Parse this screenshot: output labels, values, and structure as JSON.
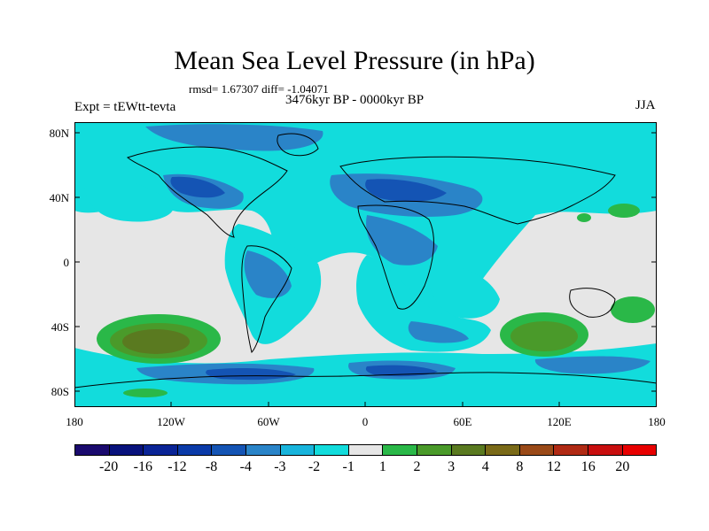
{
  "title": "Mean Sea Level Pressure (in hPa)",
  "stats": "rmsd= 1.67307 diff= -1.04071",
  "period": "3476kyr BP - 0000kyr BP",
  "experiment": "Expt = tEWtt-tevta",
  "season": "JJA",
  "lat_labels": [
    "80N",
    "40N",
    "0",
    "40S",
    "80S"
  ],
  "lon_labels": [
    "180",
    "120W",
    "60W",
    "0",
    "60E",
    "120E",
    "180"
  ],
  "colorbar": {
    "colors": [
      "#1a0a6e",
      "#08127c",
      "#0a2496",
      "#0a3aa8",
      "#1454b4",
      "#2a84c8",
      "#18b4dc",
      "#12dcdc",
      "#e6e6e6",
      "#2ab848",
      "#4a9a2a",
      "#5a7a20",
      "#7a6a18",
      "#9a4a18",
      "#b02a14",
      "#c80e0e",
      "#e80000"
    ],
    "labels": [
      "-20",
      "-16",
      "-12",
      "-8",
      "-4",
      "-3",
      "-2",
      "-1",
      "1",
      "2",
      "3",
      "4",
      "8",
      "12",
      "16",
      "20"
    ]
  },
  "palette": {
    "neutral": "#e6e6e6",
    "cyan": "#12dcdc",
    "lightblue": "#18b4dc",
    "blue": "#2a84c8",
    "darkblue": "#1454b4",
    "green": "#2ab848",
    "darkgreen": "#4a9a2a",
    "olive": "#5a7a20"
  }
}
